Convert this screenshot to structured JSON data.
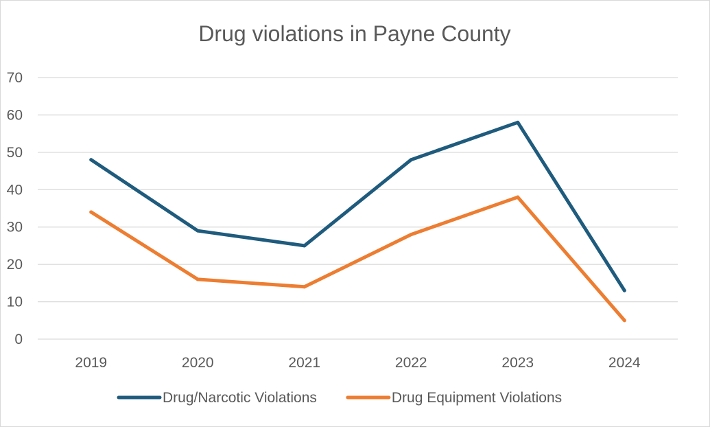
{
  "chart_data": {
    "type": "line",
    "title": "Drug violations in Payne County",
    "xlabel": "",
    "ylabel": "",
    "categories": [
      "2019",
      "2020",
      "2021",
      "2022",
      "2023",
      "2024"
    ],
    "ylim": [
      0,
      70
    ],
    "yticks": [
      "0",
      "10",
      "20",
      "30",
      "40",
      "50",
      "60",
      "70"
    ],
    "grid": true,
    "legend_position": "bottom",
    "series": [
      {
        "name": "Drug/Narcotic Violations",
        "color": "#1f5b7d",
        "values": [
          48,
          29,
          25,
          48,
          58,
          13
        ]
      },
      {
        "name": "Drug Equipment Violations",
        "color": "#ed7d31",
        "values": [
          34,
          16,
          14,
          28,
          38,
          5
        ]
      }
    ]
  }
}
